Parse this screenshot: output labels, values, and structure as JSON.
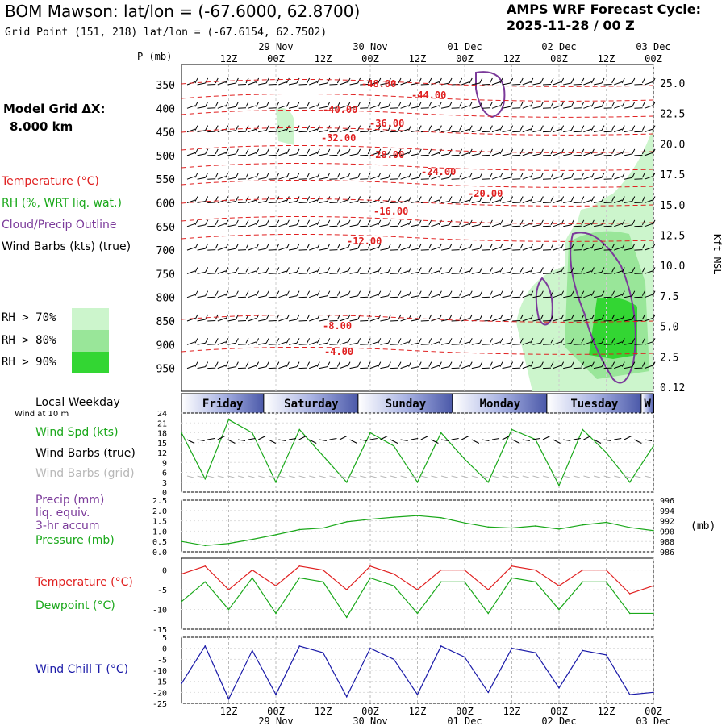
{
  "header": {
    "title": "BOM Mawson:  lat/lon = (-67.6000, 62.8700)",
    "subtitle": "Grid Point (151, 218) lat/lon = (-67.6154, 62.7502)",
    "forecast_line1": "AMPS WRF Forecast Cycle:",
    "forecast_line2": "2025-11-28 / 00  Z",
    "grid_label": "Model Grid ΔX:",
    "grid_value": "8.000 km"
  },
  "time_axis": {
    "hour_labels": [
      "12Z",
      "00Z",
      "12Z",
      "00Z",
      "12Z",
      "00Z",
      "12Z",
      "00Z",
      "12Z",
      "00Z"
    ],
    "date_labels": [
      "29 Nov",
      "30 Nov",
      "01 Dec",
      "02 Dec",
      "03 Dec"
    ],
    "days": [
      "Friday",
      "Saturday",
      "Sunday",
      "Monday",
      "Tuesday",
      "W"
    ]
  },
  "legends": {
    "profile": [
      {
        "text": "Temperature (°C)",
        "color": "#e02020"
      },
      {
        "text": "RH (%, WRT liq. wat.)",
        "color": "#1aa81a"
      },
      {
        "text": "Cloud/Precip Outline",
        "color": "#7b3a9a"
      },
      {
        "text": "Wind Barbs (kts) (true)",
        "color": "#000000"
      }
    ],
    "rh": [
      {
        "text": "RH > 70%",
        "color": "#ccf5cc"
      },
      {
        "text": "RH > 80%",
        "color": "#99e699"
      },
      {
        "text": "RH > 90%",
        "color": "#33d633"
      }
    ],
    "wind": {
      "weekday": "Local Weekday",
      "wind_at": "Wind at 10 m",
      "spd": "Wind Spd (kts)",
      "barbs": "Wind Barbs (true)",
      "grid": "Wind Barbs (grid)"
    },
    "precip": [
      "Precip (mm)",
      "liq. equiv.",
      "3-hr accum",
      "Pressure (mb)"
    ],
    "temp": {
      "t": "Temperature (°C)",
      "td": "Dewpoint (°C)"
    },
    "chill": "Wind Chill T (°C)"
  },
  "colors": {
    "temperature": "#e02020",
    "rh": "#1aa81a",
    "cloud": "#7b3a9a",
    "chill": "#1a1aa8",
    "pressure": "#1aa81a"
  },
  "chart_data": [
    {
      "type": "heatmap",
      "title": "Vertical profile",
      "ylabel": "P (mb)",
      "ylabel_right": "Kft MSL",
      "y_ticks": [
        "350",
        "400",
        "450",
        "500",
        "550",
        "600",
        "650",
        "700",
        "750",
        "800",
        "850",
        "900",
        "950"
      ],
      "y_right_ticks": [
        "25.0",
        "22.5",
        "20.0",
        "17.5",
        "15.0",
        "12.5",
        "10.0",
        "7.5",
        "5.0",
        "2.5",
        "0.12"
      ],
      "temperature_contour_labels": [
        "-48.00",
        "-44.00",
        "-40.00",
        "-36.00",
        "-32.00",
        "-28.00",
        "-24.00",
        "-20.00",
        "-16.00",
        "-12.00",
        "-8.00",
        "-4.00"
      ]
    },
    {
      "type": "line",
      "title": "Wind Spd (kts)",
      "ylim": [
        0,
        24
      ],
      "y_ticks": [
        "24",
        "21",
        "18",
        "15",
        "12",
        "9",
        "6",
        "3",
        "0"
      ],
      "x_hours": [
        0,
        6,
        12,
        18,
        24,
        30,
        36,
        42,
        48,
        54,
        60,
        66,
        72,
        78,
        84,
        90,
        96,
        102,
        108,
        114,
        120
      ],
      "series": [
        {
          "name": "Wind Spd (kts)",
          "values": [
            18,
            4,
            22,
            18,
            3,
            19,
            11,
            3,
            18,
            14,
            3,
            18,
            10,
            3,
            19,
            16,
            2,
            19,
            12,
            3,
            14
          ]
        }
      ]
    },
    {
      "type": "line",
      "title": "Precip / Pressure",
      "ylim": [
        0,
        2.5
      ],
      "y_ticks": [
        "2.5",
        "2.0",
        "1.5",
        "1.0",
        "0.5",
        "0.0"
      ],
      "y2lim": [
        986,
        996
      ],
      "y2_ticks": [
        "996",
        "994",
        "992",
        "990",
        "988",
        "986"
      ],
      "x_hours": [
        0,
        6,
        12,
        18,
        24,
        30,
        36,
        42,
        48,
        54,
        60,
        66,
        72,
        78,
        84,
        90,
        96,
        102,
        108,
        114,
        120
      ],
      "series": [
        {
          "name": "Pressure (mb)",
          "values": [
            988.0,
            987.2,
            987.6,
            988.4,
            989.3,
            990.3,
            990.6,
            991.8,
            992.3,
            992.7,
            993.0,
            992.6,
            991.6,
            990.8,
            990.6,
            991.0,
            990.4,
            991.2,
            991.7,
            990.7,
            990.1
          ]
        }
      ]
    },
    {
      "type": "line",
      "title": "Temperature / Dewpoint",
      "ylim": [
        -15,
        3
      ],
      "y_ticks": [
        "0",
        "-5",
        "-10",
        "-15"
      ],
      "x_hours": [
        0,
        6,
        12,
        18,
        24,
        30,
        36,
        42,
        48,
        54,
        60,
        66,
        72,
        78,
        84,
        90,
        96,
        102,
        108,
        114,
        120
      ],
      "series": [
        {
          "name": "Temperature (°C)",
          "values": [
            -1,
            1,
            -5,
            0,
            -4,
            1,
            0,
            -5,
            1,
            -1,
            -5,
            0,
            0,
            -5,
            1,
            0,
            -4,
            0,
            0,
            -6,
            -4
          ]
        },
        {
          "name": "Dewpoint (°C)",
          "values": [
            -8,
            -3,
            -10,
            -2,
            -11,
            -2,
            -3,
            -12,
            -2,
            -4,
            -11,
            -3,
            -3,
            -11,
            -2,
            -3,
            -10,
            -3,
            -3,
            -11,
            -11
          ]
        }
      ]
    },
    {
      "type": "line",
      "title": "Wind Chill T (°C)",
      "ylim": [
        -25,
        5
      ],
      "y_ticks": [
        "5",
        "0",
        "-5",
        "-10",
        "-15",
        "-20",
        "-25"
      ],
      "x_hours": [
        0,
        6,
        12,
        18,
        24,
        30,
        36,
        42,
        48,
        54,
        60,
        66,
        72,
        78,
        84,
        90,
        96,
        102,
        108,
        114,
        120
      ],
      "series": [
        {
          "name": "Wind Chill T (°C)",
          "values": [
            -16,
            1,
            -23,
            -1,
            -21,
            1,
            -2,
            -22,
            0,
            -5,
            -21,
            1,
            -4,
            -20,
            0,
            -2,
            -18,
            -1,
            -3,
            -21,
            -20
          ]
        }
      ]
    }
  ]
}
